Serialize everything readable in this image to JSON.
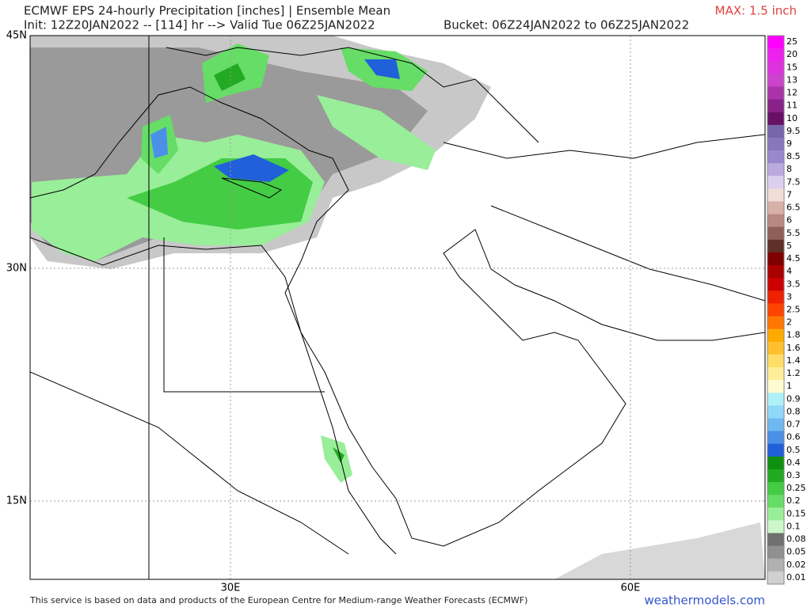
{
  "header": {
    "title": "ECMWF EPS 24-hourly Precipitation [inches] | Ensemble Mean",
    "init": "Init: 12Z20JAN2022 -- [114] hr --> Valid Tue 06Z25JAN2022",
    "bucket": "Bucket: 06Z24JAN2022 to 06Z25JAN2022",
    "max": "MAX: 1.5 inch"
  },
  "map": {
    "lat_labels": [
      "45N",
      "30N",
      "15N"
    ],
    "lon_labels": [
      "30E",
      "60E"
    ]
  },
  "legend": {
    "items": [
      {
        "label": "25",
        "color": "#ff00ff"
      },
      {
        "label": "20",
        "color": "#ee22ee"
      },
      {
        "label": "15",
        "color": "#dd33dd"
      },
      {
        "label": "13",
        "color": "#cc44cc"
      },
      {
        "label": "12",
        "color": "#aa33aa"
      },
      {
        "label": "11",
        "color": "#882288"
      },
      {
        "label": "10",
        "color": "#661166"
      },
      {
        "label": "9.5",
        "color": "#7766aa"
      },
      {
        "label": "9",
        "color": "#8877bb"
      },
      {
        "label": "8.5",
        "color": "#9988cc"
      },
      {
        "label": "8",
        "color": "#bbaadd"
      },
      {
        "label": "7.5",
        "color": "#ddd0ee"
      },
      {
        "label": "7",
        "color": "#f0ddd8"
      },
      {
        "label": "6.5",
        "color": "#d8b0a8"
      },
      {
        "label": "6",
        "color": "#b88880"
      },
      {
        "label": "5.5",
        "color": "#906058"
      },
      {
        "label": "5",
        "color": "#603028"
      },
      {
        "label": "4.5",
        "color": "#800000"
      },
      {
        "label": "4",
        "color": "#aa0000"
      },
      {
        "label": "3.5",
        "color": "#cc0000"
      },
      {
        "label": "3",
        "color": "#ee2200"
      },
      {
        "label": "2.5",
        "color": "#ff4400"
      },
      {
        "label": "2",
        "color": "#ff7700"
      },
      {
        "label": "1.8",
        "color": "#ffaa00"
      },
      {
        "label": "1.6",
        "color": "#ffc030"
      },
      {
        "label": "1.4",
        "color": "#ffdd66"
      },
      {
        "label": "1.2",
        "color": "#ffee99"
      },
      {
        "label": "1",
        "color": "#fffbd0"
      },
      {
        "label": "0.9",
        "color": "#b0f0f8"
      },
      {
        "label": "0.8",
        "color": "#90d8f8"
      },
      {
        "label": "0.7",
        "color": "#70b8f0"
      },
      {
        "label": "0.6",
        "color": "#4a90e8"
      },
      {
        "label": "0.5",
        "color": "#2060d8"
      },
      {
        "label": "0.4",
        "color": "#109010"
      },
      {
        "label": "0.3",
        "color": "#22aa22"
      },
      {
        "label": "0.25",
        "color": "#44cc44"
      },
      {
        "label": "0.2",
        "color": "#66dd66"
      },
      {
        "label": "0.15",
        "color": "#99ee99"
      },
      {
        "label": "0.1",
        "color": "#ccf8cc"
      },
      {
        "label": "0.08",
        "color": "#707070"
      },
      {
        "label": "0.05",
        "color": "#909090"
      },
      {
        "label": "0.02",
        "color": "#b0b0b0"
      },
      {
        "label": "0.01",
        "color": "#d0d0d0"
      }
    ]
  },
  "footer": {
    "credit": "This service is based on data and products of the European Centre for Medium-range Weather Forecasts (ECMWF)",
    "site": "weathermodels.com"
  }
}
